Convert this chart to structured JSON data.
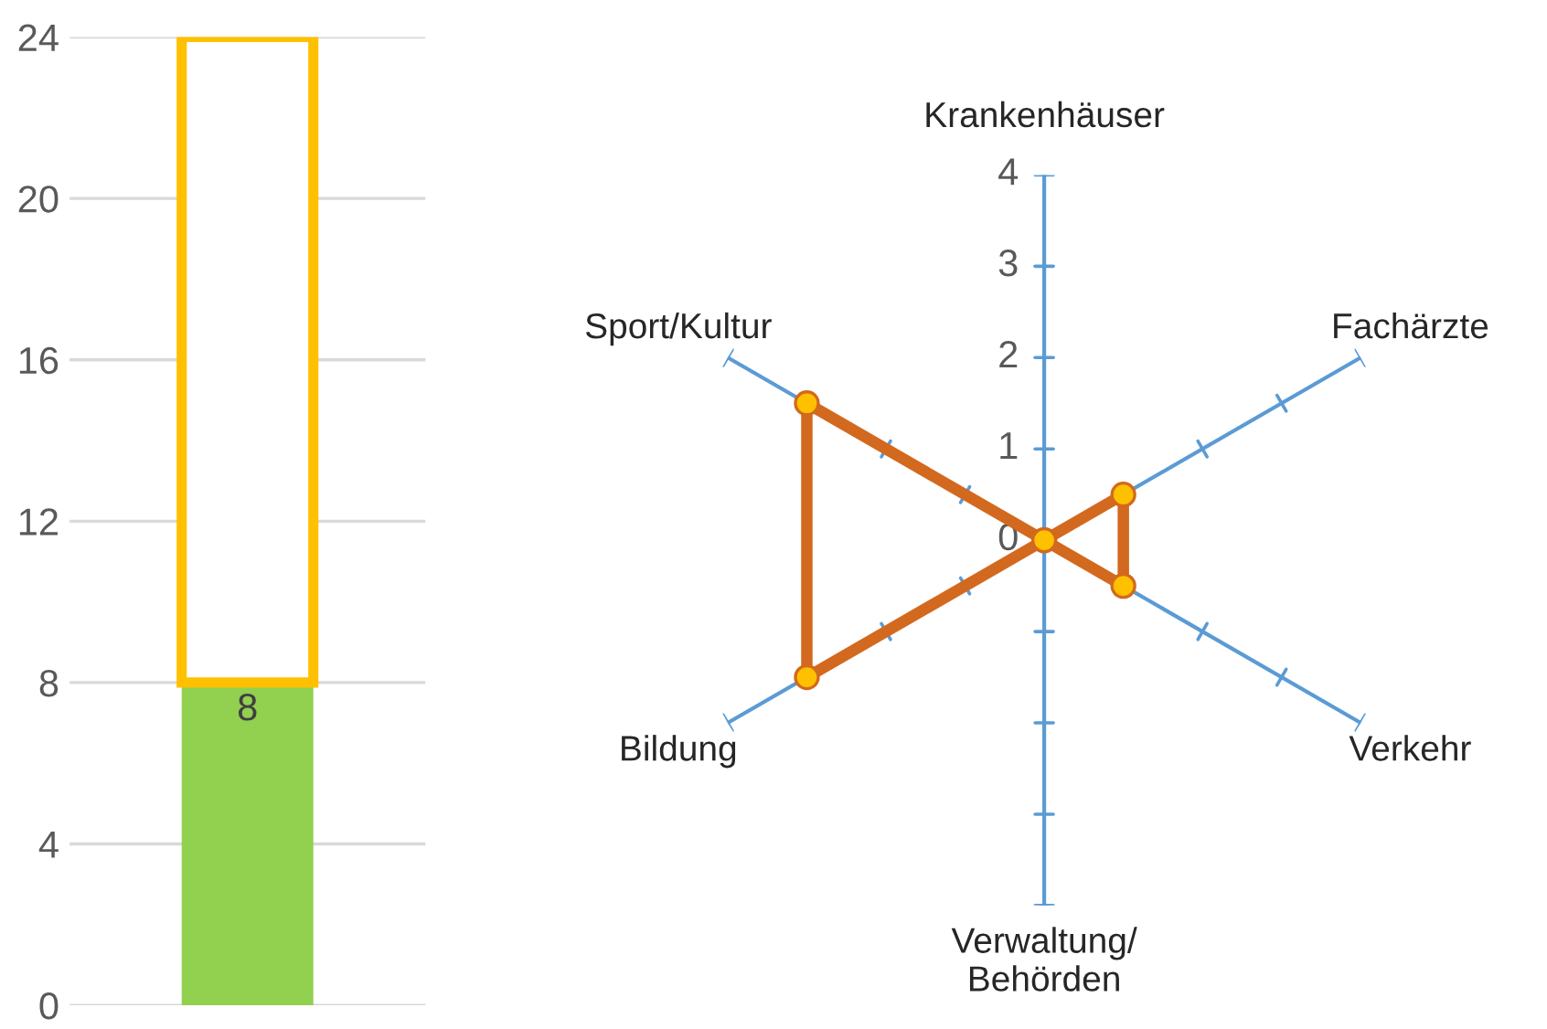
{
  "chart_data": [
    {
      "type": "bar",
      "stacked": true,
      "categories": [
        null
      ],
      "ylim": [
        0,
        24
      ],
      "yticks": [
        0,
        4,
        8,
        12,
        16,
        20,
        24
      ],
      "grid": "y",
      "legend": false,
      "series": [
        {
          "color": "#92d050",
          "values": [
            8
          ],
          "value_labels": [
            "8"
          ]
        },
        {
          "color": "#ffc000",
          "values": [
            16
          ]
        }
      ]
    },
    {
      "type": "radar",
      "categories": [
        "Krankenhäuser",
        "Fachärzte",
        "Verkehr",
        "Verwaltung/\nBehörden",
        "Bildung",
        "Sport/Kultur"
      ],
      "ylim": [
        0,
        4
      ],
      "yticks": [
        0,
        1,
        2,
        3,
        4
      ],
      "grid": false,
      "legend": false,
      "marker": "circle",
      "series": [
        {
          "color": "#d2691e",
          "values": [
            0,
            1,
            1,
            0,
            3,
            3
          ]
        }
      ]
    }
  ]
}
